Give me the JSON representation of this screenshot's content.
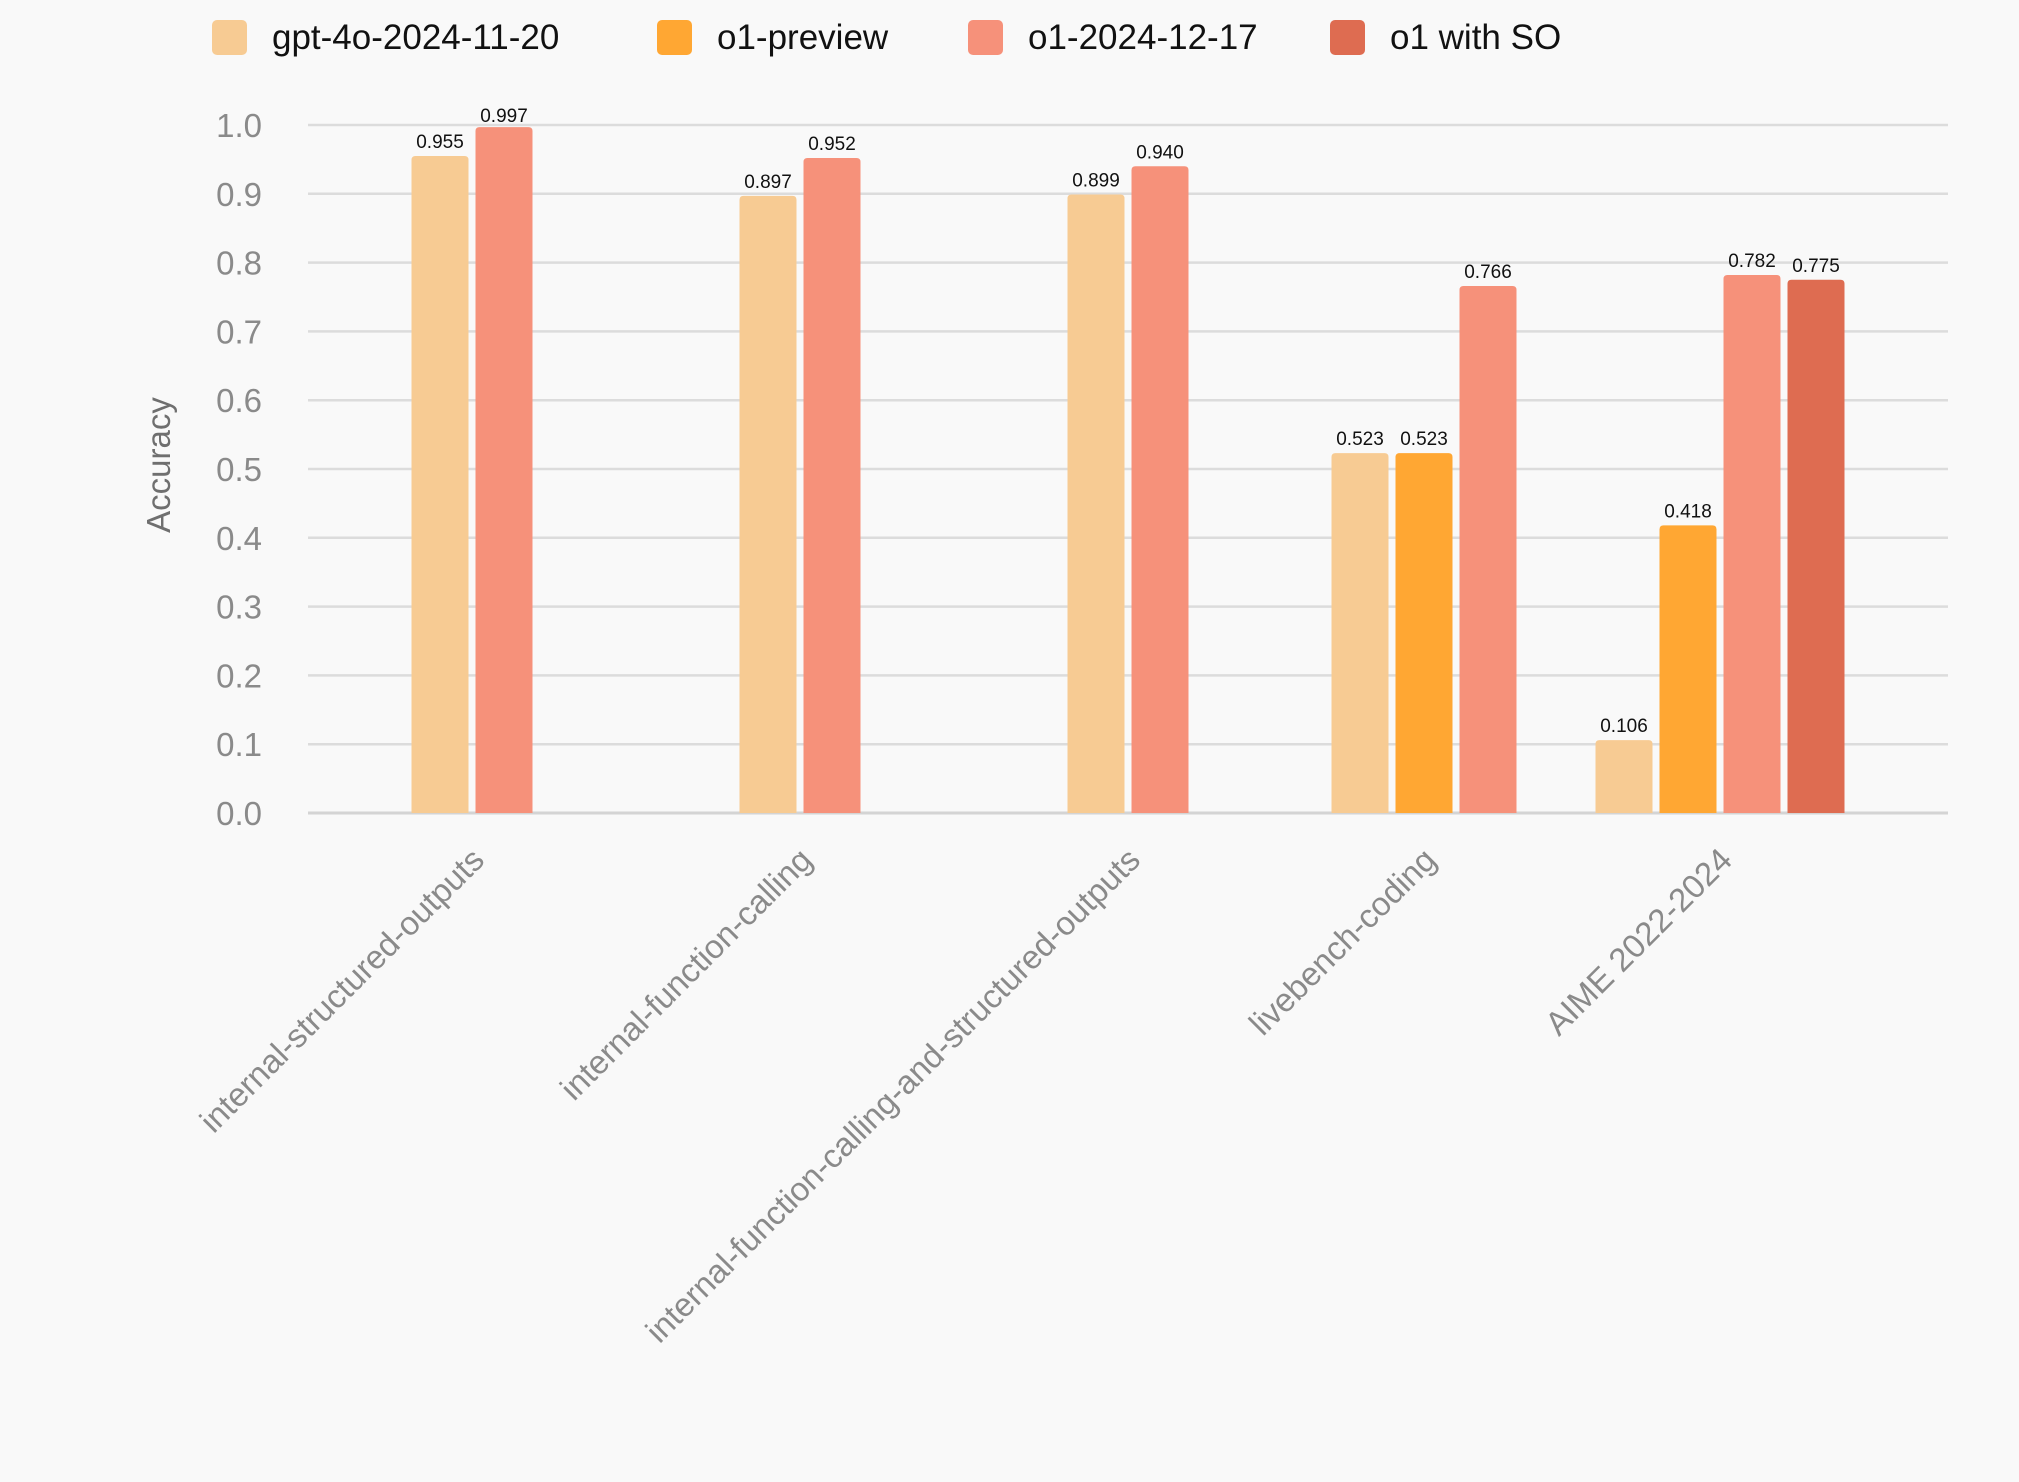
{
  "chart_data": {
    "type": "bar",
    "categories": [
      "internal-structured-outputs",
      "internal-function-calling",
      "internal-function-calling-and-structured-outputs",
      "livebench-coding",
      "AIME 2022-2024"
    ],
    "series": [
      {
        "name": "gpt-4o-2024-11-20",
        "color": "#f7cb93",
        "values": [
          0.955,
          0.897,
          0.899,
          0.523,
          0.106
        ]
      },
      {
        "name": "o1-preview",
        "color": "#ffa733",
        "values": [
          null,
          null,
          null,
          0.523,
          0.418
        ]
      },
      {
        "name": "o1-2024-12-17",
        "color": "#f6917a",
        "values": [
          0.997,
          0.952,
          0.94,
          0.766,
          0.782
        ]
      },
      {
        "name": "o1 with SO",
        "color": "#de6c51",
        "values": [
          null,
          null,
          null,
          null,
          0.775
        ]
      }
    ],
    "value_labels": [
      [
        "0.955",
        null,
        "0.997",
        null
      ],
      [
        "0.897",
        null,
        "0.952",
        null
      ],
      [
        "0.899",
        null,
        "0.940",
        null
      ],
      [
        "0.523",
        "0.523",
        "0.766",
        null
      ],
      [
        "0.106",
        "0.418",
        "0.782",
        "0.775"
      ]
    ],
    "ylabel": "Accuracy",
    "ylim": [
      0,
      1.0
    ],
    "yticks": [
      "0.0",
      "0.1",
      "0.2",
      "0.3",
      "0.4",
      "0.5",
      "0.6",
      "0.7",
      "0.8",
      "0.9",
      "1.0"
    ],
    "grid": true,
    "legend_position": "top"
  }
}
